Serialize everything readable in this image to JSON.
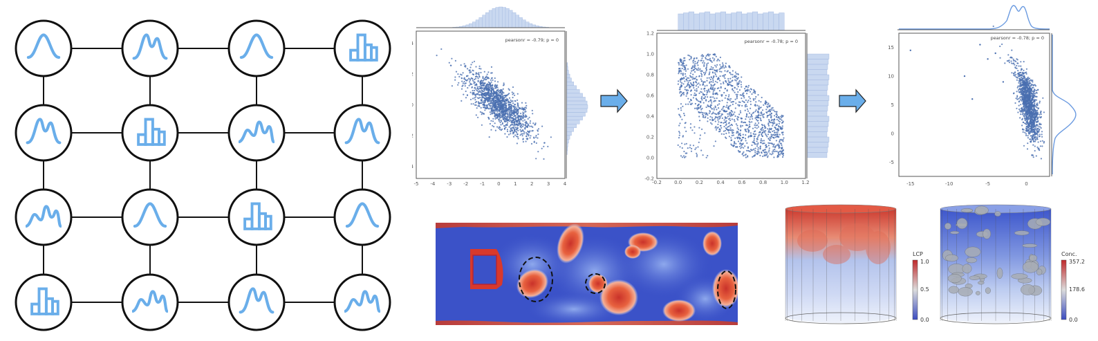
{
  "node_grid": {
    "rows": [
      [
        "gaussian-icon",
        "bimodal-icon",
        "gaussian-icon",
        "histogram-icon"
      ],
      [
        "bimodal-icon",
        "histogram-icon",
        "trimodal-icon",
        "bimodal-icon"
      ],
      [
        "trimodal-icon",
        "gaussian-icon",
        "histogram-icon",
        "gaussian-icon"
      ],
      [
        "histogram-icon",
        "trimodal-icon",
        "bimodal-icon",
        "trimodal-icon"
      ]
    ],
    "colors": {
      "curve": "#6aaeea",
      "node_stroke": "#111111",
      "edge": "#111111"
    }
  },
  "scatter_panels": [
    {
      "stat": "pearsonr = -0.79; p = 0",
      "xticks": [
        "-5",
        "-4",
        "-3",
        "-2",
        "-1",
        "0",
        "1",
        "2",
        "3",
        "4"
      ],
      "yticks": [
        "4",
        "2",
        "0",
        "-2",
        "-4"
      ]
    },
    {
      "stat": "pearsonr = -0.78; p = 0",
      "xticks": [
        "-0.2",
        "0.0",
        "0.2",
        "0.4",
        "0.6",
        "0.8",
        "1.0",
        "1.2"
      ],
      "yticks": [
        "1.2",
        "1.0",
        "0.8",
        "0.6",
        "0.4",
        "0.2",
        "0.0",
        "-0.2"
      ]
    },
    {
      "stat": "pearsonr = -0.78; p = 0",
      "xticks": [
        "-15",
        "-10",
        "-5",
        "0"
      ],
      "yticks": [
        "15",
        "10",
        "5",
        "0",
        "-5"
      ]
    }
  ],
  "flow_field": {
    "colors": {
      "low": "#3b52c8",
      "high": "#d83a2a",
      "annotation": "#111111"
    }
  },
  "volumes": [
    {
      "colorbar_title": "LCP",
      "ticks": [
        "1.0",
        "0.5",
        "0.0"
      ]
    },
    {
      "colorbar_title": "Conc.",
      "ticks": [
        "357.2",
        "178.6",
        "0.0"
      ]
    }
  ],
  "colors": {
    "arrow_fill": "#6aaeea",
    "scatter_point": "#4a6fb0",
    "marginal": "#c9d8f0"
  }
}
